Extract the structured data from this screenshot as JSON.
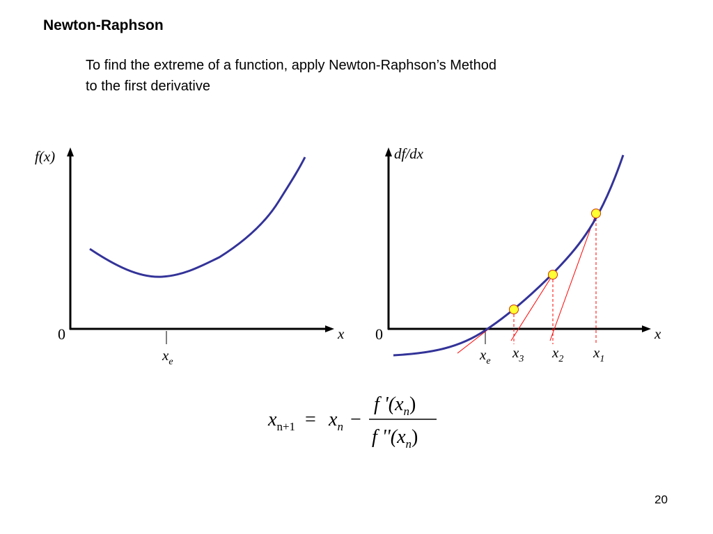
{
  "header": {
    "title": "Newton-Raphson"
  },
  "body": {
    "lines": [
      "To find the extreme of a function, apply Newton-Raphson’s Method",
      "to the first derivative"
    ]
  },
  "left_plot": {
    "y_label": "f(x)",
    "origin_label": "0",
    "x_label": "x",
    "extreme_label": {
      "main": "x",
      "sub": "e"
    }
  },
  "right_plot": {
    "y_label": "df/dx",
    "origin_label": "0",
    "x_label": "x",
    "point_labels": [
      {
        "main": "x",
        "sub": "e"
      },
      {
        "main": "x",
        "sub": "3"
      },
      {
        "main": "x",
        "sub": "2"
      },
      {
        "main": "x",
        "sub": "1"
      }
    ]
  },
  "formula": {
    "lhs": {
      "main": "x",
      "sub": "n+1"
    },
    "equals": "=",
    "rhs": {
      "main": "x",
      "sub": "n"
    },
    "minus": "−",
    "numerator": {
      "prefix": "f '(",
      "main": "x",
      "sub": "n",
      "suffix": ")"
    },
    "denominator": {
      "prefix": "f ''(",
      "main": "x",
      "sub": "n",
      "suffix": ")"
    }
  },
  "footer": {
    "page_number": "20"
  }
}
